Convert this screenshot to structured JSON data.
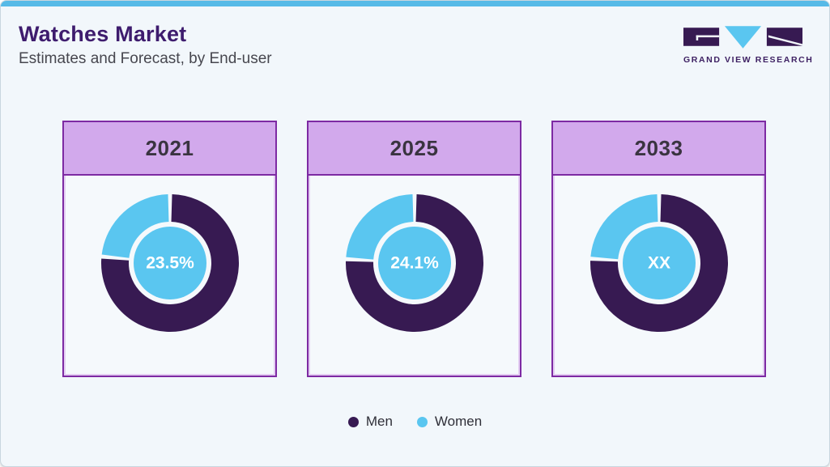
{
  "header": {
    "title": "Watches Market",
    "subtitle": "Estimates and Forecast, by End-user"
  },
  "logo": {
    "brand_name": "GRAND VIEW RESEARCH"
  },
  "legend": {
    "items": [
      {
        "label": "Men",
        "color": "#371a52"
      },
      {
        "label": "Women",
        "color": "#5ac6f0"
      }
    ]
  },
  "chart_data": {
    "type": "pie",
    "subtype": "donut",
    "title": "Watches Market",
    "subtitle": "Estimates and Forecast, by End-user",
    "unit": "%",
    "legend_entries": [
      "Men",
      "Women"
    ],
    "legend_position": "bottom",
    "slice_order": "men-clockwise-from-top",
    "charts": [
      {
        "year": "2021",
        "center_label": "23.5%",
        "series": [
          {
            "name": "Men",
            "value": 76.5
          },
          {
            "name": "Women",
            "value": 23.5
          }
        ]
      },
      {
        "year": "2025",
        "center_label": "24.1%",
        "series": [
          {
            "name": "Men",
            "value": 75.9
          },
          {
            "name": "Women",
            "value": 24.1
          }
        ]
      },
      {
        "year": "2033",
        "center_label": "XX",
        "series": [
          {
            "name": "Men",
            "value": null
          },
          {
            "name": "Women",
            "value": null
          }
        ],
        "visual_women_pct": 24
      }
    ]
  },
  "colors": {
    "men": "#371a52",
    "women": "#5ac6f0",
    "card_header": "#d2a9ec",
    "card_border": "#7d2aa3",
    "top_strip": "#57bae7",
    "title": "#3e1c6e",
    "background": "#f2f7fb"
  }
}
